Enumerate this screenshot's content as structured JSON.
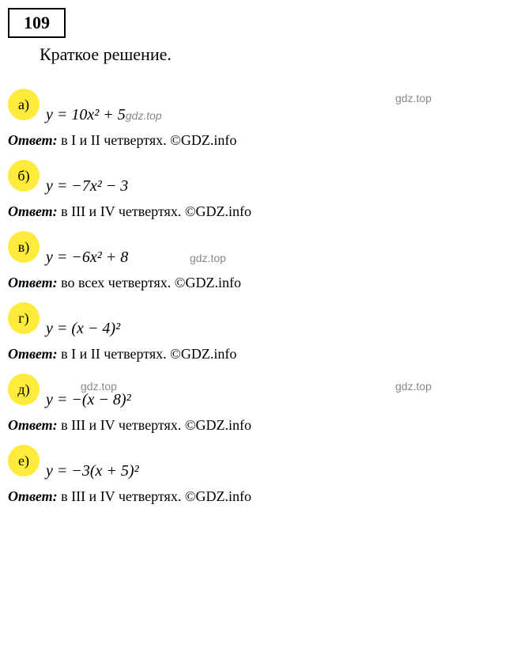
{
  "problem_number": "109",
  "subtitle": "Краткое решение.",
  "answer_label": "Ответ:",
  "copyright": "©GDZ.info",
  "watermark": "gdz.top",
  "items": [
    {
      "marker": "а)",
      "equation": "y = 10x² + 5",
      "answer": "в I и II четвертях.",
      "inline_wm": "gdz.top",
      "right_wm": "gdz.top"
    },
    {
      "marker": "б)",
      "equation": "y = −7x² − 3",
      "answer": "в III и IV четвертях."
    },
    {
      "marker": "в)",
      "equation": "y = −6x² + 8",
      "answer": "во всех четвертях.",
      "side_wm": "gdz.top"
    },
    {
      "marker": "г)",
      "equation": "y = (x − 4)²",
      "answer": "в I и II четвертях."
    },
    {
      "marker": "д)",
      "equation": "y = −(x − 8)²",
      "answer": "в III и IV четвертях.",
      "top_wm_left": "gdz.top",
      "top_wm_right": "gdz.top"
    },
    {
      "marker": "е)",
      "equation": "y = −3(x + 5)²",
      "answer": "в III и IV четвертях."
    }
  ]
}
